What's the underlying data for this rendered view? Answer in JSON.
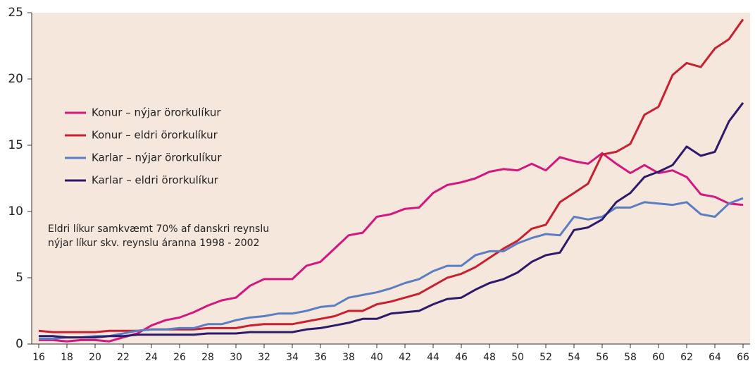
{
  "chart_data": {
    "type": "line",
    "x": [
      16,
      17,
      18,
      19,
      20,
      21,
      22,
      23,
      24,
      25,
      26,
      27,
      28,
      29,
      30,
      31,
      32,
      33,
      34,
      35,
      36,
      37,
      38,
      39,
      40,
      41,
      42,
      43,
      44,
      45,
      46,
      47,
      48,
      49,
      50,
      51,
      52,
      53,
      54,
      55,
      56,
      57,
      58,
      59,
      60,
      61,
      62,
      63,
      64,
      65,
      66
    ],
    "series": [
      {
        "name": "Konur – nýjar örorkulíkur",
        "color": "#d4177f",
        "values": [
          0.3,
          0.3,
          0.2,
          0.3,
          0.3,
          0.2,
          0.5,
          0.8,
          1.4,
          1.8,
          2.0,
          2.4,
          2.9,
          3.3,
          3.5,
          4.4,
          4.9,
          4.9,
          4.9,
          5.9,
          6.2,
          7.2,
          8.2,
          8.4,
          9.6,
          9.8,
          10.2,
          10.3,
          11.4,
          12.0,
          12.2,
          12.5,
          13.0,
          13.2,
          13.1,
          13.6,
          13.1,
          14.1,
          13.8,
          13.6,
          14.4,
          13.6,
          12.9,
          13.5,
          12.9,
          13.1,
          12.6,
          11.3,
          11.1,
          10.6,
          10.5
        ]
      },
      {
        "name": "Konur – eldri örorkulíkur",
        "color": "#c8202f",
        "values": [
          1.0,
          0.9,
          0.9,
          0.9,
          0.9,
          1.0,
          1.0,
          1.0,
          1.1,
          1.1,
          1.1,
          1.1,
          1.2,
          1.2,
          1.2,
          1.4,
          1.5,
          1.5,
          1.5,
          1.7,
          1.9,
          2.1,
          2.5,
          2.5,
          3.0,
          3.2,
          3.5,
          3.8,
          4.4,
          5.0,
          5.3,
          5.8,
          6.5,
          7.2,
          7.8,
          8.7,
          9.0,
          10.7,
          11.4,
          12.1,
          14.3,
          14.5,
          15.1,
          17.3,
          17.9,
          20.3,
          21.2,
          20.9,
          22.3,
          23.0,
          24.5
        ]
      },
      {
        "name": "Karlar – nýjar örorkulíkur",
        "color": "#5b7ec2",
        "values": [
          0.4,
          0.4,
          0.5,
          0.5,
          0.6,
          0.6,
          0.8,
          1.0,
          1.1,
          1.1,
          1.2,
          1.2,
          1.5,
          1.5,
          1.8,
          2.0,
          2.1,
          2.3,
          2.3,
          2.5,
          2.8,
          2.9,
          3.5,
          3.7,
          3.9,
          4.2,
          4.6,
          4.9,
          5.5,
          5.9,
          5.9,
          6.7,
          7.0,
          7.0,
          7.6,
          8.0,
          8.3,
          8.2,
          9.6,
          9.4,
          9.6,
          10.3,
          10.3,
          10.7,
          10.6,
          10.5,
          10.7,
          9.8,
          9.6,
          10.6,
          11.0
        ]
      },
      {
        "name": "Karlar – eldri örorkulíkur",
        "color": "#2e1a6b",
        "values": [
          0.6,
          0.6,
          0.5,
          0.5,
          0.5,
          0.6,
          0.6,
          0.7,
          0.7,
          0.7,
          0.7,
          0.7,
          0.8,
          0.8,
          0.8,
          0.9,
          0.9,
          0.9,
          0.9,
          1.1,
          1.2,
          1.4,
          1.6,
          1.9,
          1.9,
          2.3,
          2.4,
          2.5,
          3.0,
          3.4,
          3.5,
          4.1,
          4.6,
          4.9,
          5.4,
          6.2,
          6.7,
          6.9,
          8.6,
          8.8,
          9.4,
          10.7,
          11.4,
          12.6,
          13.0,
          13.5,
          14.9,
          14.2,
          14.5,
          16.8,
          18.2
        ]
      }
    ],
    "annotation": [
      "Eldri líkur samkvæmt 70% af danskri reynslu",
      "nýjar líkur skv. reynslu áranna 1998 - 2002"
    ],
    "xlim": [
      15.5,
      66.5
    ],
    "xticks": [
      16,
      18,
      20,
      22,
      24,
      26,
      28,
      30,
      32,
      34,
      36,
      38,
      40,
      42,
      44,
      46,
      48,
      50,
      52,
      54,
      56,
      58,
      60,
      62,
      64,
      66
    ],
    "ylim": [
      0,
      25
    ],
    "yticks": [
      0,
      5,
      10,
      15,
      20,
      25
    ],
    "background": "#f6e7dd"
  }
}
